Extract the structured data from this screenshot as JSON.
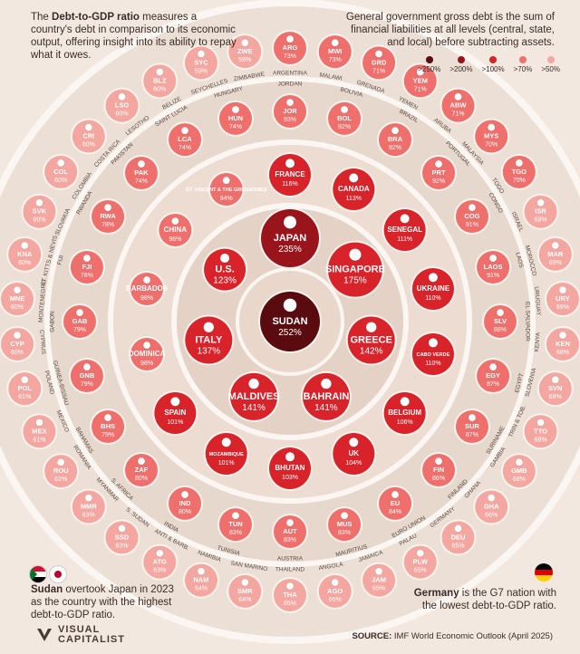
{
  "intro_left": {
    "prefix": "The ",
    "bold": "Debt-to-GDP ratio",
    "text": " measures a country's debt in comparison to its economic output, offering insight into its ability to repay what it owes."
  },
  "intro_right": "General government gross debt is the sum of financial liabilities at all levels (central, state, and local) before subtracting assets.",
  "legend": [
    {
      "label": ">250%",
      "color": "#5a0b10"
    },
    {
      "label": ">200%",
      "color": "#9a141b"
    },
    {
      "label": ">100%",
      "color": "#d8232b"
    },
    {
      "label": ">70%",
      "color": "#ee6f6c"
    },
    {
      "label": ">50%",
      "color": "#f3a7a0"
    }
  ],
  "note_sudan": {
    "bold": "Sudan",
    "text": " overtook Japan in 2023 as the country with the highest debt-to-GDP ratio."
  },
  "note_germany": {
    "bold": "Germany",
    "text": " is the G7 nation with the lowest debt-to-GDP ratio."
  },
  "brand": {
    "line1": "VISUAL",
    "line2": "CAPITALIST"
  },
  "source": {
    "label": "SOURCE:",
    "text": " IMF World Economic Outlook (April 2025)"
  },
  "chart_data": {
    "type": "radial-bubble",
    "title": "",
    "unit": "% of GDP",
    "rings": [
      {
        "ring": 0,
        "items": [
          {
            "code": "SUDAN",
            "value": 252
          }
        ]
      },
      {
        "ring": 1,
        "items": [
          {
            "code": "JAPAN",
            "value": 235
          },
          {
            "code": "SINGAPORE",
            "value": 175
          },
          {
            "code": "GREECE",
            "value": 142
          },
          {
            "code": "BAHRAIN",
            "value": 141
          },
          {
            "code": "MALDIVES",
            "value": 141
          },
          {
            "code": "ITALY",
            "value": 137
          },
          {
            "code": "U.S.",
            "value": 123
          }
        ]
      },
      {
        "ring": 2,
        "items": [
          {
            "code": "FRANCE",
            "value": 116
          },
          {
            "code": "CANADA",
            "value": 113
          },
          {
            "code": "SENEGAL",
            "value": 111
          },
          {
            "code": "UKRAINE",
            "value": 110
          },
          {
            "code": "CABO VERDE",
            "value": 110
          },
          {
            "code": "BELGIUM",
            "value": 106
          },
          {
            "code": "UK",
            "value": 104
          },
          {
            "code": "BHUTAN",
            "value": 103
          },
          {
            "code": "MOZAMBIQUE",
            "value": 101
          },
          {
            "code": "SPAIN",
            "value": 101
          },
          {
            "code": "DOMINICA",
            "value": 98
          },
          {
            "code": "BARBADOS",
            "value": 98
          },
          {
            "code": "CHINA",
            "value": 96
          },
          {
            "code": "ST. VINCENT & THE GRENADINES",
            "value": 94
          }
        ]
      },
      {
        "ring": 3,
        "items": [
          {
            "code": "JOR",
            "value": 93,
            "name": "JORDAN"
          },
          {
            "code": "BOL",
            "value": 92,
            "name": "BOLIVIA"
          },
          {
            "code": "BRA",
            "value": 92,
            "name": "BRAZIL"
          },
          {
            "code": "PRT",
            "value": 92,
            "name": "PORTUGAL"
          },
          {
            "code": "COG",
            "value": 91,
            "name": "CONGO"
          },
          {
            "code": "LAOS",
            "value": 91,
            "name": "LAOS"
          },
          {
            "code": "SLV",
            "value": 88,
            "name": "EL SALVADOR"
          },
          {
            "code": "EGY",
            "value": 87,
            "name": "EGYPT"
          },
          {
            "code": "SUR",
            "value": 87,
            "name": "SURINAME"
          },
          {
            "code": "FIN",
            "value": 86,
            "name": "FINLAND"
          },
          {
            "code": "EU",
            "value": 84,
            "name": "EURO UNION"
          },
          {
            "code": "MUS",
            "value": 83,
            "name": "MAURITIUS"
          },
          {
            "code": "AUT",
            "value": 83,
            "name": "AUSTRIA"
          },
          {
            "code": "TUN",
            "value": 83,
            "name": "TUNISIA"
          },
          {
            "code": "IND",
            "value": 80,
            "name": "INDIA"
          },
          {
            "code": "ZAF",
            "value": 80,
            "name": "S. AFRICA"
          },
          {
            "code": "BHS",
            "value": 79,
            "name": "BAHAMAS"
          },
          {
            "code": "GNB",
            "value": 79,
            "name": "GUINEA-BISSAU"
          },
          {
            "code": "GAB",
            "value": 79,
            "name": "GABON"
          },
          {
            "code": "FJI",
            "value": 78,
            "name": "FIJI"
          },
          {
            "code": "RWA",
            "value": 78,
            "name": "RWANDA"
          },
          {
            "code": "PAK",
            "value": 74,
            "name": "PAKISTAN"
          },
          {
            "code": "LCA",
            "value": 74,
            "name": "SAINT LUCIA"
          },
          {
            "code": "HUN",
            "value": 74,
            "name": "HUNGARY"
          }
        ]
      },
      {
        "ring": 4,
        "items": [
          {
            "code": "ARG",
            "value": 73,
            "name": "ARGENTINA"
          },
          {
            "code": "MWI",
            "value": 73,
            "name": "MALAWI"
          },
          {
            "code": "GRD",
            "value": 71,
            "name": "GRENADA"
          },
          {
            "code": "YEM",
            "value": 71,
            "name": "YEMEN"
          },
          {
            "code": "ABW",
            "value": 71,
            "name": "ARUBA"
          },
          {
            "code": "MYS",
            "value": 70,
            "name": "MALAYSIA"
          },
          {
            "code": "TGO",
            "value": 70,
            "name": "TOGO"
          },
          {
            "code": "ISR",
            "value": 69,
            "name": "ISRAEL"
          },
          {
            "code": "MAR",
            "value": 69,
            "name": "MOROCCO"
          },
          {
            "code": "URY",
            "value": 69,
            "name": "URUGUAY"
          },
          {
            "code": "KEN",
            "value": 68,
            "name": "KENYA"
          },
          {
            "code": "SVN",
            "value": 68,
            "name": "SLOVENIA"
          },
          {
            "code": "TTO",
            "value": 68,
            "name": "TRIN & TOB."
          },
          {
            "code": "GMB",
            "value": 68,
            "name": "GAMBIA"
          },
          {
            "code": "GHA",
            "value": 66,
            "name": "GHANA"
          },
          {
            "code": "DEU",
            "value": 65,
            "name": "GERMANY"
          },
          {
            "code": "PLW",
            "value": 65,
            "name": "PALAU"
          },
          {
            "code": "JAM",
            "value": 65,
            "name": "JAMAICA"
          },
          {
            "code": "AGO",
            "value": 65,
            "name": "ANGOLA"
          },
          {
            "code": "THA",
            "value": 65,
            "name": "THAILAND"
          },
          {
            "code": "SMR",
            "value": 64,
            "name": "SAN MARINO"
          },
          {
            "code": "NAM",
            "value": 64,
            "name": "NAMIBIA"
          },
          {
            "code": "ATG",
            "value": 63,
            "name": "ANTI & BARB."
          },
          {
            "code": "SSD",
            "value": 63,
            "name": "S. SUDAN"
          },
          {
            "code": "MMR",
            "value": 63,
            "name": "MYANMAR"
          },
          {
            "code": "ROU",
            "value": 62,
            "name": "ROMANIA"
          },
          {
            "code": "MEX",
            "value": 61,
            "name": "MEXICO"
          },
          {
            "code": "POL",
            "value": 61,
            "name": "POLAND"
          },
          {
            "code": "CYP",
            "value": 60,
            "name": "CYPRUS"
          },
          {
            "code": "MNE",
            "value": 60,
            "name": "MONTENEGRO"
          },
          {
            "code": "KNA",
            "value": 60,
            "name": "ST. KITTS & NEVIS"
          },
          {
            "code": "SVK",
            "value": 60,
            "name": "SLOVAKIA"
          },
          {
            "code": "COL",
            "value": 60,
            "name": "COLOMBIA"
          },
          {
            "code": "CRI",
            "value": 60,
            "name": "COSTA RICA"
          },
          {
            "code": "LSO",
            "value": 60,
            "name": "LESOTHO"
          },
          {
            "code": "BLZ",
            "value": 60,
            "name": "BELIZE"
          },
          {
            "code": "SYC",
            "value": 59,
            "name": "SEYCHELLES"
          },
          {
            "code": "ZWE",
            "value": 59,
            "name": "ZIMBABWE"
          }
        ]
      }
    ]
  }
}
